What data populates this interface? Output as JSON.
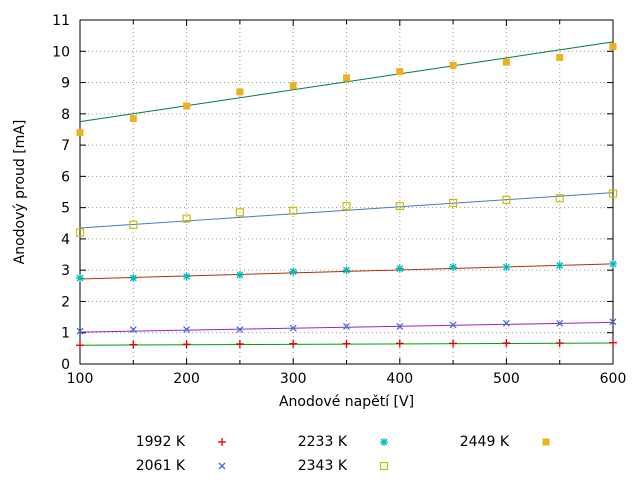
{
  "chart_data": {
    "type": "scatter",
    "title": "",
    "xlabel": "Anodové napětí [V]",
    "ylabel": "Anodový proud [mA]",
    "xlim": [
      100,
      600
    ],
    "ylim": [
      0,
      11
    ],
    "grid": true,
    "legend_position": "bottom",
    "x": [
      100,
      150,
      200,
      250,
      300,
      350,
      400,
      450,
      500,
      550,
      600
    ],
    "xticks_labeled": [
      100,
      200,
      300,
      400,
      500,
      600
    ],
    "xtick_minor_step": 50,
    "yticks": [
      0,
      1,
      2,
      3,
      4,
      5,
      6,
      7,
      8,
      9,
      10,
      11
    ],
    "series": [
      {
        "name": "1992 K",
        "marker": "plus",
        "marker_color": "#e00000",
        "line_color": "#00a000",
        "values": [
          0.6,
          0.62,
          0.63,
          0.64,
          0.65,
          0.65,
          0.66,
          0.66,
          0.67,
          0.67,
          0.68
        ],
        "fit": [
          0.6,
          0.67
        ]
      },
      {
        "name": "2061 K",
        "marker": "x",
        "marker_color": "#4169e1",
        "line_color": "#a020c0",
        "values": [
          1.05,
          1.1,
          1.1,
          1.1,
          1.15,
          1.2,
          1.2,
          1.25,
          1.3,
          1.3,
          1.35
        ],
        "fit": [
          1.02,
          1.33
        ]
      },
      {
        "name": "2233 K",
        "marker": "asterisk",
        "marker_color": "#00b8b8",
        "line_color": "#b03000",
        "values": [
          2.75,
          2.75,
          2.8,
          2.85,
          2.95,
          3.0,
          3.05,
          3.1,
          3.1,
          3.15,
          3.2
        ],
        "fit": [
          2.72,
          3.2
        ]
      },
      {
        "name": "2343 K",
        "marker": "open-square",
        "marker_color": "#cdbe00",
        "line_color": "#4878c8",
        "values": [
          4.2,
          4.45,
          4.65,
          4.85,
          4.9,
          5.05,
          5.05,
          5.15,
          5.25,
          5.3,
          5.45
        ],
        "fit": [
          4.35,
          5.48
        ]
      },
      {
        "name": "2449 K",
        "marker": "filled-square",
        "marker_color": "#efaf1f",
        "line_color": "#007a3d",
        "values": [
          7.4,
          7.85,
          8.25,
          8.7,
          8.9,
          9.15,
          9.35,
          9.55,
          9.65,
          9.8,
          10.15
        ],
        "fit": [
          7.75,
          10.3
        ]
      }
    ]
  }
}
